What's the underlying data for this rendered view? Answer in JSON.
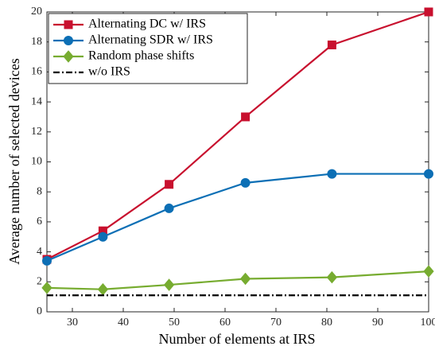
{
  "chart_data": {
    "type": "line",
    "x_label": "Number of elements at IRS",
    "y_label": "Average number of selected devices",
    "x": [
      25,
      36,
      49,
      64,
      81,
      100
    ],
    "series": [
      {
        "name": "Alternating DC w/ IRS",
        "color": "#c8102e",
        "marker": "square",
        "dash": "solid",
        "values": [
          3.5,
          5.4,
          8.5,
          13.0,
          17.8,
          20.0
        ]
      },
      {
        "name": "Alternating SDR w/ IRS",
        "color": "#0c6fb5",
        "marker": "circle",
        "dash": "solid",
        "values": [
          3.4,
          5.0,
          6.9,
          8.6,
          9.2,
          9.2
        ]
      },
      {
        "name": "Random phase shifts",
        "color": "#77ac30",
        "marker": "diamond",
        "dash": "solid",
        "values": [
          1.6,
          1.5,
          1.8,
          2.2,
          2.3,
          2.7
        ]
      },
      {
        "name": "w/o IRS",
        "color": "#000000",
        "marker": "none",
        "dash": "dashdot",
        "values": [
          1.1,
          1.1,
          1.1,
          1.1,
          1.1,
          1.1
        ]
      }
    ],
    "xlim": [
      25,
      100
    ],
    "xticks": [
      30,
      40,
      50,
      60,
      70,
      80,
      90,
      100
    ],
    "ylim": [
      0,
      20
    ],
    "yticks": [
      0,
      2,
      4,
      6,
      8,
      10,
      12,
      14,
      16,
      18,
      20
    ],
    "grid": false,
    "legend": "upper left"
  }
}
